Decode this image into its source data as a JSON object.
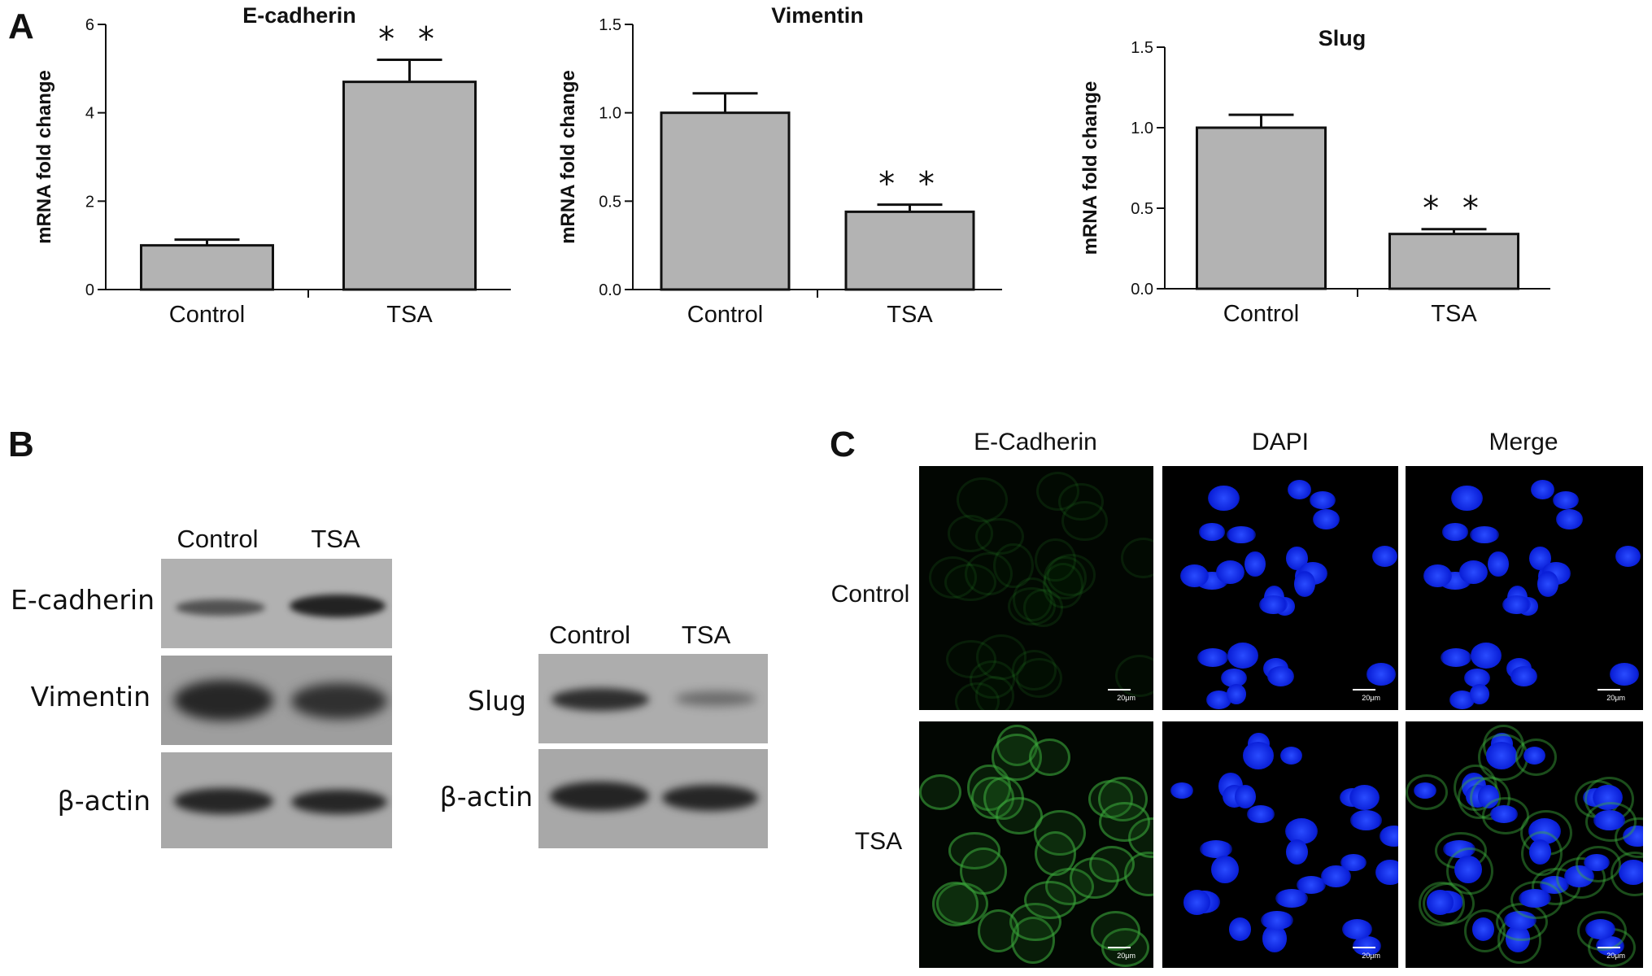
{
  "panels": {
    "a": "A",
    "b": "B",
    "c": "C"
  },
  "chart_data": [
    {
      "type": "bar",
      "title": "E-cadherin",
      "ylabel": "mRNA fold change",
      "categories": [
        "Control",
        "TSA"
      ],
      "values": [
        1.0,
        4.7
      ],
      "errors": [
        0.13,
        0.5
      ],
      "ylim": [
        0,
        6
      ],
      "yticks": [
        "0",
        "2",
        "4",
        "6"
      ],
      "ytick_values": [
        0,
        2,
        4,
        6
      ],
      "annotations": [
        {
          "category": "TSA",
          "text": "* *"
        }
      ]
    },
    {
      "type": "bar",
      "title": "Vimentin",
      "ylabel": "mRNA fold change",
      "categories": [
        "Control",
        "TSA"
      ],
      "values": [
        1.0,
        0.44
      ],
      "errors": [
        0.11,
        0.04
      ],
      "ylim": [
        0,
        1.5
      ],
      "yticks": [
        "0.0",
        "0.5",
        "1.0",
        "1.5"
      ],
      "ytick_values": [
        0,
        0.5,
        1.0,
        1.5
      ],
      "annotations": [
        {
          "category": "TSA",
          "text": "* *"
        }
      ]
    },
    {
      "type": "bar",
      "title": "Slug",
      "ylabel": "mRNA fold change",
      "categories": [
        "Control",
        "TSA"
      ],
      "values": [
        1.0,
        0.34
      ],
      "errors": [
        0.08,
        0.03
      ],
      "ylim": [
        0,
        1.5
      ],
      "yticks": [
        "0.0",
        "0.5",
        "1.0",
        "1.5"
      ],
      "ytick_values": [
        0,
        0.5,
        1.0,
        1.5
      ],
      "annotations": [
        {
          "category": "TSA",
          "text": "* *"
        }
      ]
    }
  ],
  "western": {
    "left": {
      "lanes": [
        "Control",
        "TSA"
      ],
      "rows": [
        "E-cadherin",
        "Vimentin",
        "β-actin"
      ]
    },
    "right": {
      "lanes": [
        "Control",
        "TSA"
      ],
      "rows": [
        "Slug",
        "β-actin"
      ]
    }
  },
  "microscopy": {
    "columns": [
      "E-Cadherin",
      "DAPI",
      "Merge"
    ],
    "rows": [
      "Control",
      "TSA"
    ],
    "scale_label": "20μm"
  }
}
